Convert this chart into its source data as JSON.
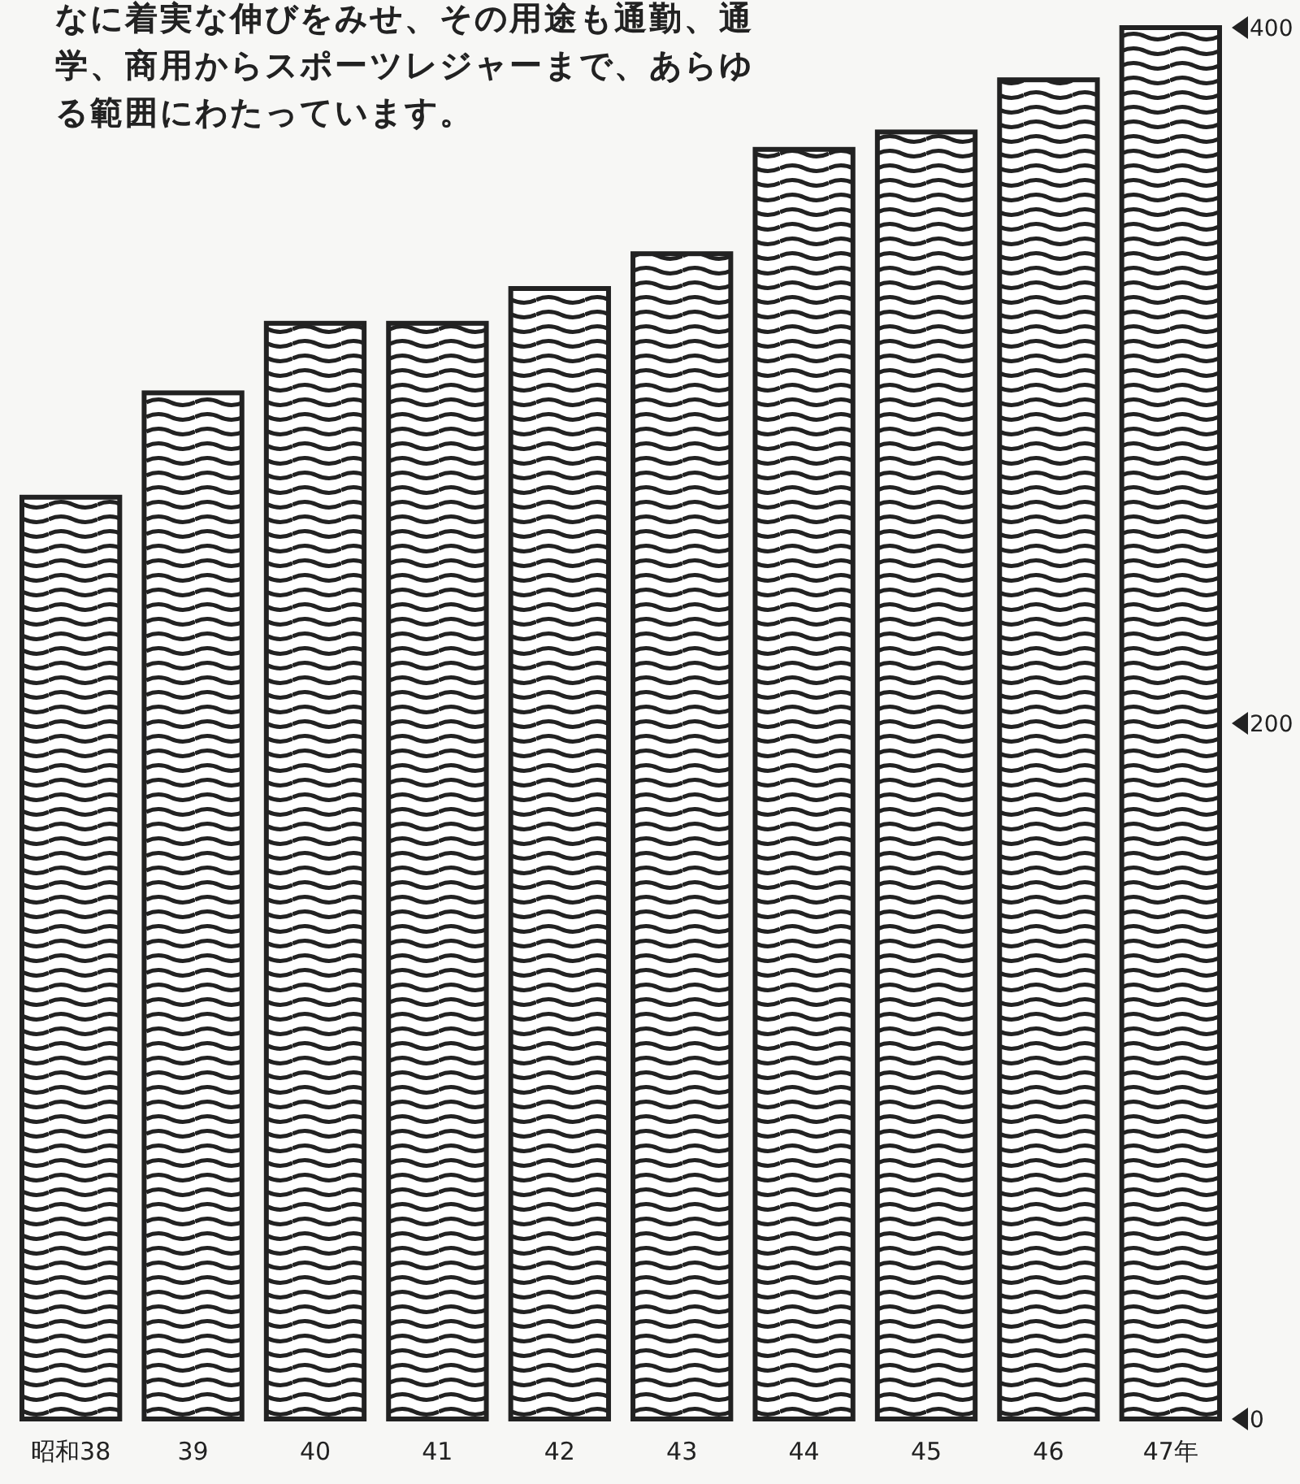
{
  "chart_data": {
    "type": "bar",
    "subtitle": "なに着実な伸びをみせ、その用途も通勤、通学、商用からスポーツレジャーまで、あらゆる範囲にわたっています。",
    "categories": [
      "昭和38",
      "39",
      "40",
      "41",
      "42",
      "43",
      "44",
      "45",
      "46",
      "47年"
    ],
    "values": [
      265,
      295,
      315,
      315,
      325,
      335,
      365,
      370,
      385,
      400
    ],
    "color": "#222222",
    "ylim": [
      0,
      400
    ],
    "yticks": [
      0,
      200,
      400
    ]
  }
}
